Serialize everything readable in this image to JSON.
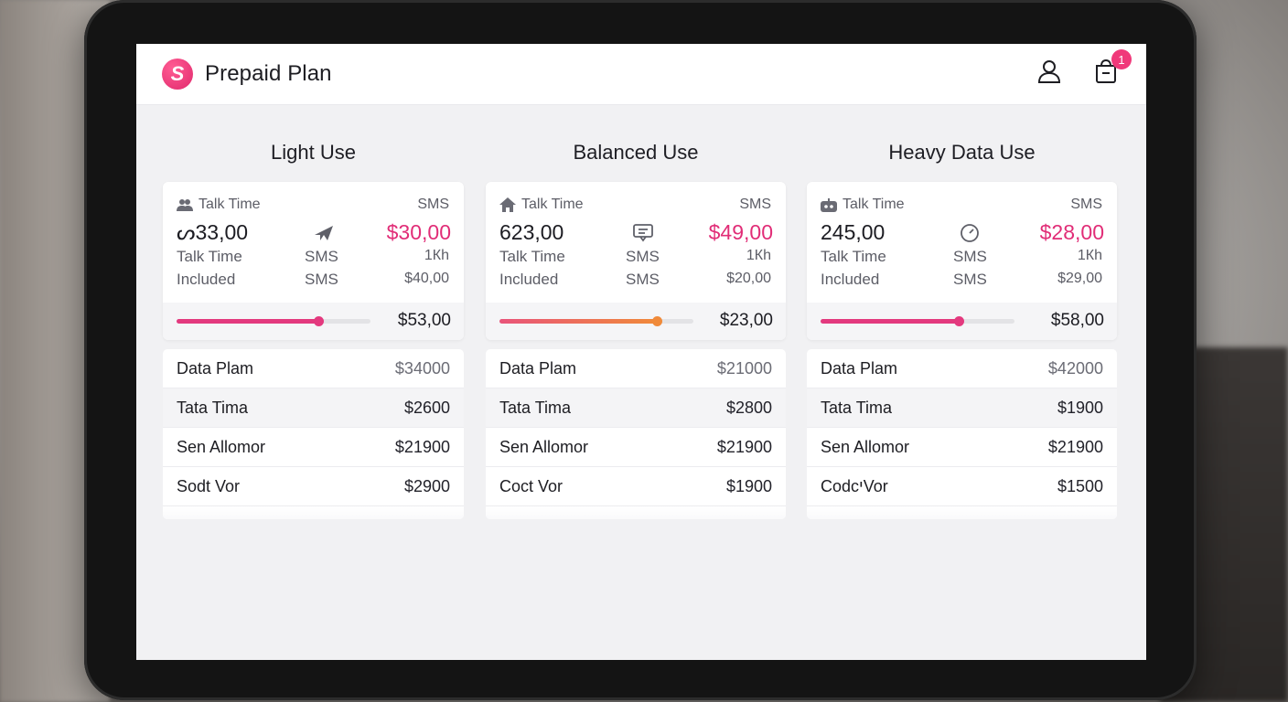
{
  "app": {
    "title": "Prepaid Plan",
    "logo_letter": "S",
    "cart_count": "1",
    "accent": "#e12d77"
  },
  "plans": [
    {
      "name": "Light Use",
      "header_label": "Talk Time",
      "header_icon": "users-icon",
      "header_right": "SMS",
      "big_value": "ᔕ33,00",
      "mid_icon": "plane-icon",
      "price": "$30,00",
      "row2": {
        "label": "Talk Time",
        "mid": "SMS",
        "right": "1Кh"
      },
      "row3": {
        "label": "Included",
        "mid": "SMS",
        "right": "$40,00"
      },
      "progress": 0.73,
      "bar_colors": [
        "#e3397e",
        "#e3397e"
      ],
      "strip_price": "$53,00",
      "list": [
        {
          "label": "Data Plam",
          "value": "$34000"
        },
        {
          "label": "Tata Tima",
          "value": "$2600"
        },
        {
          "label": "Sen Allomor",
          "value": "$21900"
        },
        {
          "label": "Sodt Vor",
          "value": "$2900"
        }
      ]
    },
    {
      "name": "Balanced Use",
      "header_label": "Talk Time",
      "header_icon": "home-icon",
      "header_right": "SMS",
      "big_value": "623,00",
      "mid_icon": "message-icon",
      "price": "$49,00",
      "row2": {
        "label": "Talk Time",
        "mid": "SMS",
        "right": "1Кh"
      },
      "row3": {
        "label": "Included",
        "mid": "SMS",
        "right": "$20,00"
      },
      "progress": 0.81,
      "bar_colors": [
        "#e9547a",
        "#f08a3a"
      ],
      "strip_price": "$23,00",
      "list": [
        {
          "label": "Data Plam",
          "value": "$21000"
        },
        {
          "label": "Tata Tima",
          "value": "$2800"
        },
        {
          "label": "Sen Allomor",
          "value": "$21900"
        },
        {
          "label": "Coct Vor",
          "value": "$1900"
        }
      ]
    },
    {
      "name": "Heavy Data Use",
      "header_label": "Talk Time",
      "header_icon": "robot-icon",
      "header_right": "SMS",
      "big_value": "245,00",
      "mid_icon": "gauge-icon",
      "price": "$28,00",
      "row2": {
        "label": "Talk Time",
        "mid": "SMS",
        "right": "1Кh"
      },
      "row3": {
        "label": "Included",
        "mid": "SMS",
        "right": "$29,00"
      },
      "progress": 0.71,
      "bar_colors": [
        "#e3397e",
        "#e3397e"
      ],
      "strip_price": "$58,00",
      "list": [
        {
          "label": "Data Plam",
          "value": "$42000"
        },
        {
          "label": "Tata Tima",
          "value": "$1900"
        },
        {
          "label": "Sen Allomor",
          "value": "$21900"
        },
        {
          "label": "CodcיVor",
          "value": "$1500"
        }
      ]
    }
  ]
}
